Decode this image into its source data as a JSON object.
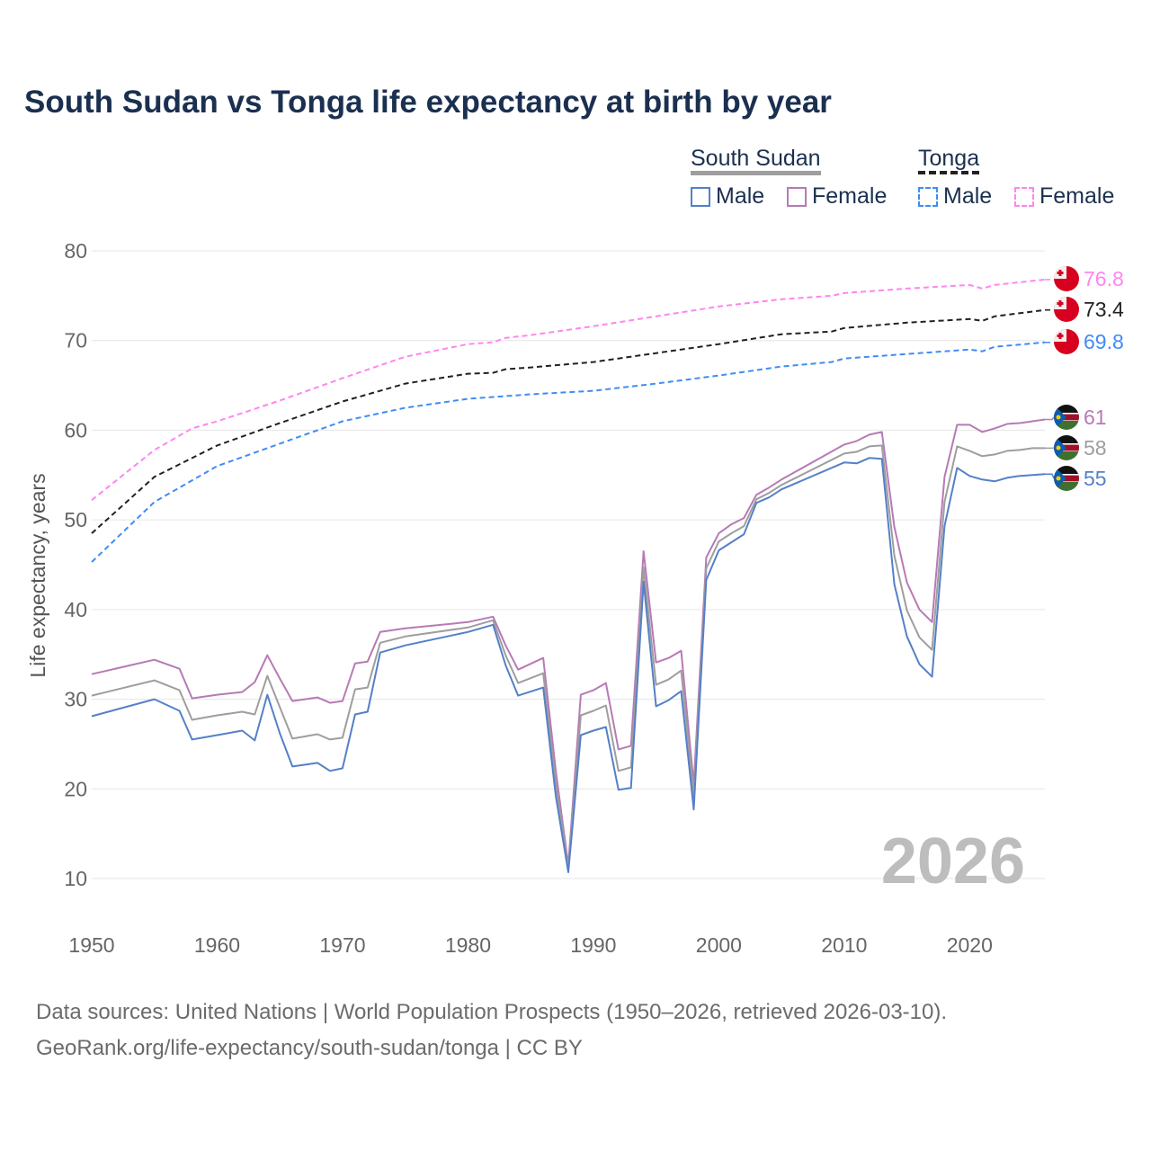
{
  "title": "South Sudan vs Tonga life expectancy at birth by year",
  "legend": {
    "groups": [
      {
        "name": "South Sudan",
        "color": "#9e9e9e",
        "items": [
          {
            "label": "Male",
            "color": "#5480c8"
          },
          {
            "label": "Female",
            "color": "#b77ab5"
          }
        ]
      },
      {
        "name": "Tonga",
        "color": "#222222",
        "items": [
          {
            "label": "Male",
            "color": "#3f8cf5"
          },
          {
            "label": "Female",
            "color": "#ff85f0"
          }
        ]
      }
    ]
  },
  "watermark_year": "2026",
  "footer": {
    "line1": "Data sources: United Nations | World Population Prospects (1950–2026, retrieved 2026-03-10).",
    "line2": "GeoRank.org/life-expectancy/south-sudan/tonga | CC BY"
  },
  "chart_data": {
    "type": "line",
    "title": "South Sudan vs Tonga life expectancy at birth by year",
    "xlabel": "",
    "ylabel": "Life expectancy, years",
    "xlim": [
      1950,
      2026
    ],
    "ylim": [
      10,
      80
    ],
    "x_ticks": [
      "1950",
      "1960",
      "1970",
      "1980",
      "1990",
      "2000",
      "2010",
      "2020"
    ],
    "y_ticks": [
      "10",
      "20",
      "30",
      "40",
      "50",
      "60",
      "70",
      "80"
    ],
    "grid": true,
    "legend_position": "top-right",
    "series": [
      {
        "name": "Tonga Female",
        "color": "#ff85f0",
        "dashed": true,
        "end_label": "76.8",
        "flag": "tonga",
        "x": [
          1950,
          1955,
          1958,
          1960,
          1965,
          1970,
          1975,
          1980,
          1982,
          1983,
          1985,
          1990,
          1995,
          2000,
          2005,
          2009,
          2010,
          2015,
          2020,
          2021,
          2022,
          2026
        ],
        "y": [
          52.2,
          57.8,
          60.2,
          61.0,
          63.3,
          65.8,
          68.2,
          69.6,
          69.8,
          70.3,
          70.6,
          71.6,
          72.7,
          73.8,
          74.6,
          75.0,
          75.3,
          75.8,
          76.2,
          75.8,
          76.2,
          76.8
        ]
      },
      {
        "name": "Tonga",
        "color": "#222222",
        "dashed": true,
        "end_label": "73.4",
        "flag": "tonga",
        "x": [
          1950,
          1955,
          1960,
          1965,
          1970,
          1975,
          1980,
          1982,
          1983,
          1985,
          1990,
          1995,
          2000,
          2005,
          2009,
          2010,
          2015,
          2020,
          2021,
          2022,
          2026
        ],
        "y": [
          48.5,
          54.8,
          58.3,
          60.8,
          63.2,
          65.2,
          66.3,
          66.4,
          66.8,
          67.0,
          67.6,
          68.6,
          69.6,
          70.7,
          71.0,
          71.4,
          72.0,
          72.4,
          72.2,
          72.7,
          73.4
        ]
      },
      {
        "name": "Tonga Male",
        "color": "#3f8cf5",
        "dashed": true,
        "end_label": "69.8",
        "flag": "tonga",
        "x": [
          1950,
          1955,
          1960,
          1965,
          1970,
          1975,
          1980,
          1985,
          1990,
          1995,
          2000,
          2005,
          2009,
          2010,
          2015,
          2020,
          2021,
          2022,
          2026
        ],
        "y": [
          45.3,
          52.0,
          56.0,
          58.5,
          61.0,
          62.5,
          63.5,
          64.0,
          64.4,
          65.2,
          66.1,
          67.1,
          67.6,
          68.0,
          68.5,
          69.0,
          68.8,
          69.3,
          69.8
        ]
      },
      {
        "name": "South Sudan Female",
        "color": "#b77ab5",
        "dashed": false,
        "end_label": "61",
        "flag": "south-sudan",
        "x": [
          1950,
          1955,
          1957,
          1958,
          1960,
          1962,
          1963,
          1964,
          1965,
          1966,
          1968,
          1969,
          1970,
          1971,
          1972,
          1973,
          1975,
          1980,
          1982,
          1983,
          1984,
          1986,
          1987,
          1988,
          1989,
          1990,
          1991,
          1992,
          1993,
          1994,
          1995,
          1996,
          1997,
          1998,
          1999,
          2000,
          2001,
          2002,
          2003,
          2004,
          2005,
          2010,
          2011,
          2012,
          2013,
          2014,
          2015,
          2016,
          2017,
          2018,
          2019,
          2020,
          2021,
          2022,
          2023,
          2024,
          2025,
          2026
        ],
        "y": [
          32.8,
          34.4,
          33.4,
          30.1,
          30.5,
          30.8,
          31.9,
          34.9,
          32.3,
          29.8,
          30.2,
          29.6,
          29.8,
          34.0,
          34.2,
          37.5,
          37.9,
          38.6,
          39.2,
          36.0,
          33.3,
          34.6,
          22.0,
          11.5,
          30.5,
          31.0,
          31.8,
          24.4,
          24.8,
          46.5,
          34.1,
          34.6,
          35.4,
          20.5,
          45.8,
          48.5,
          49.5,
          50.2,
          52.8,
          53.6,
          54.5,
          58.4,
          58.8,
          59.5,
          59.8,
          49.2,
          43.0,
          40.0,
          38.6,
          54.8,
          60.6,
          60.6,
          59.8,
          60.2,
          60.7,
          60.8,
          61.0,
          61.2
        ]
      },
      {
        "name": "South Sudan",
        "color": "#9e9e9e",
        "dashed": false,
        "end_label": "58",
        "flag": "south-sudan",
        "x": [
          1950,
          1955,
          1957,
          1958,
          1960,
          1962,
          1963,
          1964,
          1965,
          1966,
          1968,
          1969,
          1970,
          1971,
          1972,
          1973,
          1975,
          1980,
          1982,
          1983,
          1984,
          1986,
          1987,
          1988,
          1989,
          1990,
          1991,
          1992,
          1993,
          1994,
          1995,
          1996,
          1997,
          1998,
          1999,
          2000,
          2001,
          2002,
          2003,
          2004,
          2005,
          2010,
          2011,
          2012,
          2013,
          2014,
          2015,
          2016,
          2017,
          2018,
          2019,
          2020,
          2021,
          2022,
          2023,
          2024,
          2025,
          2026
        ],
        "y": [
          30.4,
          32.1,
          31.0,
          27.7,
          28.2,
          28.6,
          28.3,
          32.6,
          29.1,
          25.6,
          26.1,
          25.5,
          25.7,
          31.1,
          31.3,
          36.3,
          37.0,
          38.0,
          38.8,
          34.9,
          31.8,
          32.9,
          20.6,
          11.1,
          28.2,
          28.7,
          29.3,
          22.0,
          22.4,
          44.7,
          31.6,
          32.2,
          33.2,
          19.1,
          44.6,
          47.6,
          48.5,
          49.3,
          52.3,
          53.0,
          53.9,
          57.4,
          57.6,
          58.2,
          58.3,
          46.0,
          39.9,
          36.9,
          35.5,
          52.0,
          58.2,
          57.7,
          57.1,
          57.3,
          57.7,
          57.8,
          58.0,
          58.0
        ]
      },
      {
        "name": "South Sudan Male",
        "color": "#5480c8",
        "dashed": false,
        "end_label": "55",
        "flag": "south-sudan",
        "x": [
          1950,
          1955,
          1957,
          1958,
          1960,
          1962,
          1963,
          1964,
          1965,
          1966,
          1968,
          1969,
          1970,
          1971,
          1972,
          1973,
          1975,
          1980,
          1982,
          1983,
          1984,
          1986,
          1987,
          1988,
          1989,
          1990,
          1991,
          1992,
          1993,
          1994,
          1995,
          1996,
          1997,
          1998,
          1999,
          2000,
          2001,
          2002,
          2003,
          2004,
          2005,
          2010,
          2011,
          2012,
          2013,
          2014,
          2015,
          2016,
          2017,
          2018,
          2019,
          2020,
          2021,
          2022,
          2023,
          2024,
          2025,
          2026
        ],
        "y": [
          28.1,
          30.0,
          28.7,
          25.5,
          26.0,
          26.5,
          25.4,
          30.5,
          26.2,
          22.5,
          22.9,
          22.0,
          22.3,
          28.3,
          28.6,
          35.2,
          36.0,
          37.5,
          38.3,
          33.8,
          30.4,
          31.3,
          19.2,
          10.7,
          26.0,
          26.5,
          26.9,
          19.9,
          20.1,
          43.1,
          29.2,
          29.9,
          30.9,
          17.7,
          43.3,
          46.6,
          47.5,
          48.4,
          51.9,
          52.5,
          53.4,
          56.4,
          56.3,
          56.9,
          56.8,
          42.8,
          37.0,
          33.9,
          32.5,
          49.3,
          55.8,
          54.9,
          54.5,
          54.3,
          54.7,
          54.9,
          55.0,
          55.1
        ]
      }
    ]
  }
}
